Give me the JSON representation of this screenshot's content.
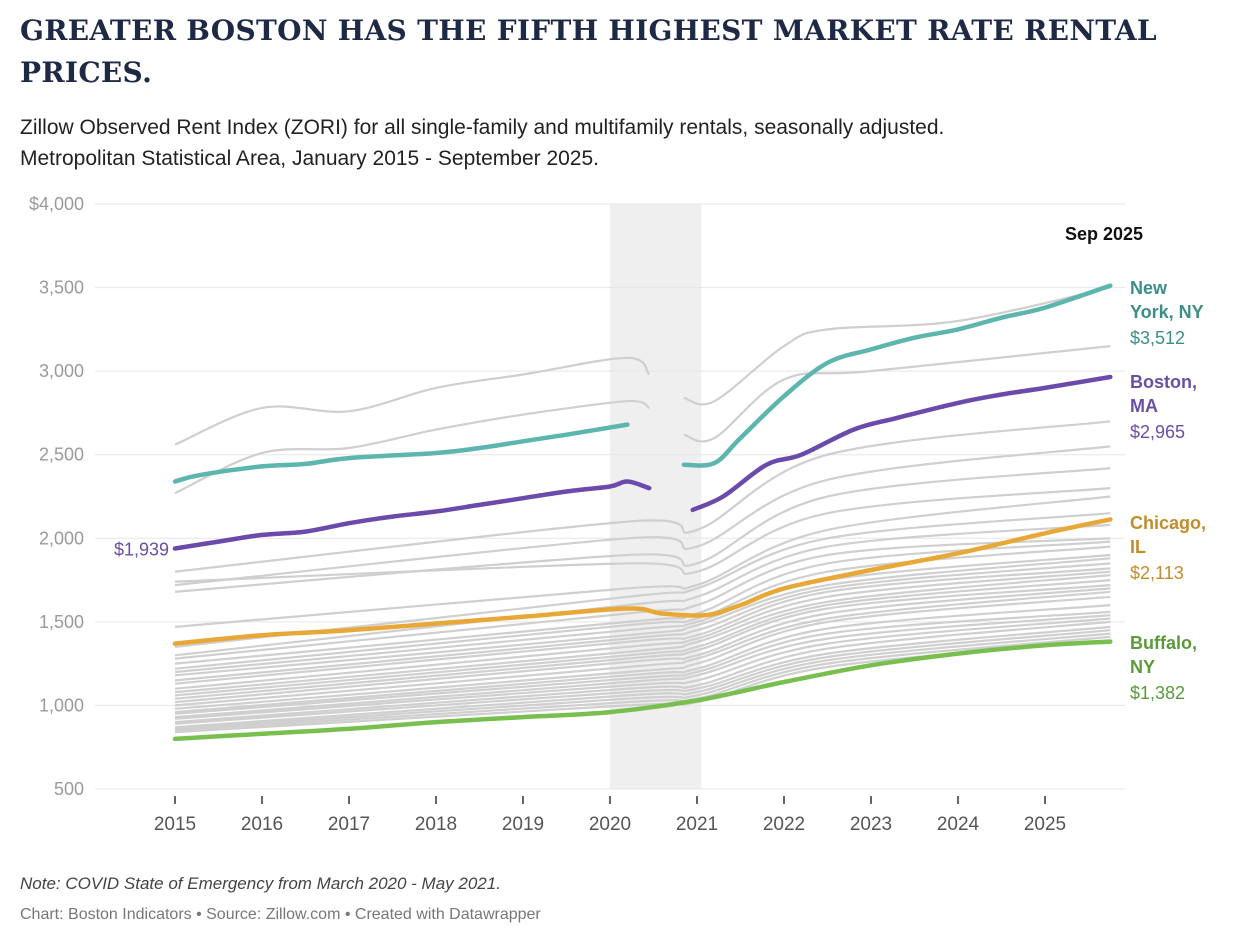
{
  "title": "GREATER BOSTON HAS THE FIFTH HIGHEST MARKET RATE RENTAL PRICES.",
  "subtitle_line1": "Zillow Observed Rent Index (ZORI) for all single-family and multifamily rentals, seasonally adjusted.",
  "subtitle_line2": "Metropolitan Statistical Area, January 2015 - September 2025.",
  "note": "Note: COVID State of Emergency from March 2020 - May 2021.",
  "credit": "Chart: Boston Indicators • Source: Zillow.com • Created with Datawrapper",
  "chart_data": {
    "type": "line",
    "title": "GREATER BOSTON HAS THE FIFTH HIGHEST MARKET RATE RENTAL PRICES.",
    "ylim": [
      500,
      4000
    ],
    "yticks": [
      500,
      1000,
      1500,
      2000,
      2500,
      3000,
      3500,
      4000
    ],
    "ytick_labels": [
      "500",
      "1,000",
      "1,500",
      "2,000",
      "2,500",
      "3,000",
      "3,500",
      "$4,000"
    ],
    "xticks": [
      2015,
      2016,
      2017,
      2018,
      2019,
      2020,
      2021,
      2022,
      2023,
      2024,
      2025
    ],
    "xlim": [
      2015,
      2025.75
    ],
    "grid": true,
    "shaded_band": {
      "from": 2020.0,
      "to": 2021.05,
      "label": "COVID State of Emergency"
    },
    "end_label_header": "Sep 2025",
    "start_annotation": {
      "series": "Boston, MA",
      "text": "$1,939"
    },
    "highlight_series": [
      {
        "name_line1": "New",
        "name_line2": "York, NY",
        "value_label": "$3,512",
        "color": "#5cb6ae",
        "text_color": "#3d8e88",
        "segments": [
          [
            [
              2015,
              2340
            ],
            [
              2015.3,
              2380
            ],
            [
              2016,
              2430
            ],
            [
              2016.5,
              2445
            ],
            [
              2017,
              2480
            ],
            [
              2018,
              2510
            ],
            [
              2018.5,
              2540
            ],
            [
              2019,
              2580
            ],
            [
              2019.5,
              2620
            ],
            [
              2020.2,
              2680
            ]
          ],
          [
            [
              2020.85,
              2440
            ],
            [
              2021.2,
              2450
            ],
            [
              2021.5,
              2600
            ],
            [
              2022,
              2850
            ],
            [
              2022.5,
              3050
            ],
            [
              2023,
              3130
            ],
            [
              2023.5,
              3200
            ],
            [
              2024,
              3250
            ],
            [
              2024.5,
              3320
            ],
            [
              2025,
              3380
            ],
            [
              2025.75,
              3512
            ]
          ]
        ]
      },
      {
        "name_line1": "Boston,",
        "name_line2": "MA",
        "value_label": "$2,965",
        "color": "#6a4bab",
        "text_color": "#6a4fa5",
        "segments": [
          [
            [
              2015,
              1939
            ],
            [
              2015.5,
              1980
            ],
            [
              2016,
              2020
            ],
            [
              2016.5,
              2040
            ],
            [
              2017,
              2090
            ],
            [
              2017.5,
              2130
            ],
            [
              2018,
              2160
            ],
            [
              2018.5,
              2200
            ],
            [
              2019,
              2240
            ],
            [
              2019.5,
              2280
            ],
            [
              2020,
              2310
            ],
            [
              2020.2,
              2340
            ],
            [
              2020.45,
              2300
            ]
          ],
          [
            [
              2020.95,
              2170
            ],
            [
              2021.3,
              2250
            ],
            [
              2021.8,
              2440
            ],
            [
              2022.2,
              2500
            ],
            [
              2022.8,
              2650
            ],
            [
              2023.3,
              2720
            ],
            [
              2024,
              2810
            ],
            [
              2024.5,
              2860
            ],
            [
              2025,
              2900
            ],
            [
              2025.75,
              2965
            ]
          ]
        ]
      },
      {
        "name_line1": "Chicago,",
        "name_line2": "IL",
        "value_label": "$2,113",
        "color": "#e8a838",
        "text_color": "#c38c2b",
        "segments": [
          [
            [
              2015,
              1370
            ],
            [
              2016,
              1420
            ],
            [
              2017,
              1450
            ],
            [
              2018,
              1490
            ],
            [
              2019,
              1530
            ],
            [
              2020.2,
              1580
            ],
            [
              2020.6,
              1550
            ],
            [
              2021.1,
              1540
            ],
            [
              2021.5,
              1600
            ],
            [
              2022,
              1700
            ],
            [
              2023,
              1810
            ],
            [
              2024,
              1910
            ],
            [
              2025,
              2030
            ],
            [
              2025.75,
              2113
            ]
          ]
        ]
      },
      {
        "name_line1": "Buffalo,",
        "name_line2": "NY",
        "value_label": "$1,382",
        "color": "#79bf4f",
        "text_color": "#5a9a3a",
        "segments": [
          [
            [
              2015,
              800
            ],
            [
              2016,
              830
            ],
            [
              2017,
              860
            ],
            [
              2018,
              900
            ],
            [
              2019,
              930
            ],
            [
              2020,
              960
            ],
            [
              2021,
              1030
            ],
            [
              2022,
              1140
            ],
            [
              2023,
              1240
            ],
            [
              2024,
              1310
            ],
            [
              2025,
              1360
            ],
            [
              2025.75,
              1382
            ]
          ]
        ]
      }
    ],
    "other_series_x": [
      2015,
      2020.2,
      2021,
      2022.5,
      2025.75
    ],
    "other_series_color": "#cfcfcf",
    "other_series_segmented": [
      [
        [
          [
            2015,
            2560
          ],
          [
            2016,
            2780
          ],
          [
            2017,
            2760
          ],
          [
            2018,
            2900
          ],
          [
            2019,
            2980
          ],
          [
            2020.2,
            3080
          ],
          [
            2020.45,
            2980
          ]
        ],
        [
          [
            2020.85,
            2840
          ],
          [
            2021.2,
            2820
          ],
          [
            2022,
            3150
          ],
          [
            2022.5,
            3250
          ],
          [
            2024,
            3300
          ],
          [
            2025.75,
            3500
          ]
        ]
      ],
      [
        [
          [
            2015,
            2270
          ],
          [
            2016,
            2510
          ],
          [
            2017,
            2540
          ],
          [
            2018,
            2650
          ],
          [
            2019,
            2740
          ],
          [
            2020.2,
            2820
          ],
          [
            2020.45,
            2780
          ]
        ],
        [
          [
            2020.85,
            2620
          ],
          [
            2021.2,
            2600
          ],
          [
            2022,
            2950
          ],
          [
            2023,
            3000
          ],
          [
            2025.75,
            3150
          ]
        ]
      ]
    ],
    "other_series": [
      [
        1800,
        2100,
        2050,
        2500,
        2700
      ],
      [
        1720,
        2000,
        1950,
        2350,
        2550
      ],
      [
        1680,
        1900,
        1850,
        2250,
        2420
      ],
      [
        1740,
        1850,
        1800,
        2150,
        2300
      ],
      [
        1470,
        1700,
        1720,
        2050,
        2250
      ],
      [
        1350,
        1650,
        1700,
        2000,
        2150
      ],
      [
        1300,
        1600,
        1650,
        1950,
        2080
      ],
      [
        1280,
        1550,
        1600,
        1900,
        2000
      ],
      [
        1250,
        1500,
        1550,
        1850,
        1980
      ],
      [
        1220,
        1480,
        1520,
        1800,
        1950
      ],
      [
        1200,
        1450,
        1500,
        1750,
        1900
      ],
      [
        1180,
        1420,
        1480,
        1720,
        1880
      ],
      [
        1150,
        1400,
        1450,
        1700,
        1850
      ],
      [
        1130,
        1380,
        1420,
        1680,
        1820
      ],
      [
        1100,
        1350,
        1400,
        1650,
        1800
      ],
      [
        1080,
        1320,
        1380,
        1620,
        1780
      ],
      [
        1060,
        1300,
        1350,
        1600,
        1750
      ],
      [
        1040,
        1280,
        1330,
        1580,
        1720
      ],
      [
        1020,
        1260,
        1300,
        1550,
        1700
      ],
      [
        1000,
        1230,
        1280,
        1520,
        1680
      ],
      [
        980,
        1200,
        1250,
        1500,
        1650
      ],
      [
        960,
        1180,
        1220,
        1460,
        1600
      ],
      [
        950,
        1160,
        1200,
        1430,
        1560
      ],
      [
        930,
        1140,
        1180,
        1400,
        1540
      ],
      [
        920,
        1120,
        1150,
        1370,
        1520
      ],
      [
        900,
        1100,
        1120,
        1340,
        1500
      ],
      [
        890,
        1080,
        1100,
        1310,
        1470
      ],
      [
        870,
        1060,
        1080,
        1290,
        1450
      ],
      [
        860,
        1040,
        1060,
        1270,
        1430
      ],
      [
        850,
        1020,
        1040,
        1250,
        1410
      ],
      [
        840,
        1000,
        1020,
        1230,
        1390
      ]
    ]
  }
}
